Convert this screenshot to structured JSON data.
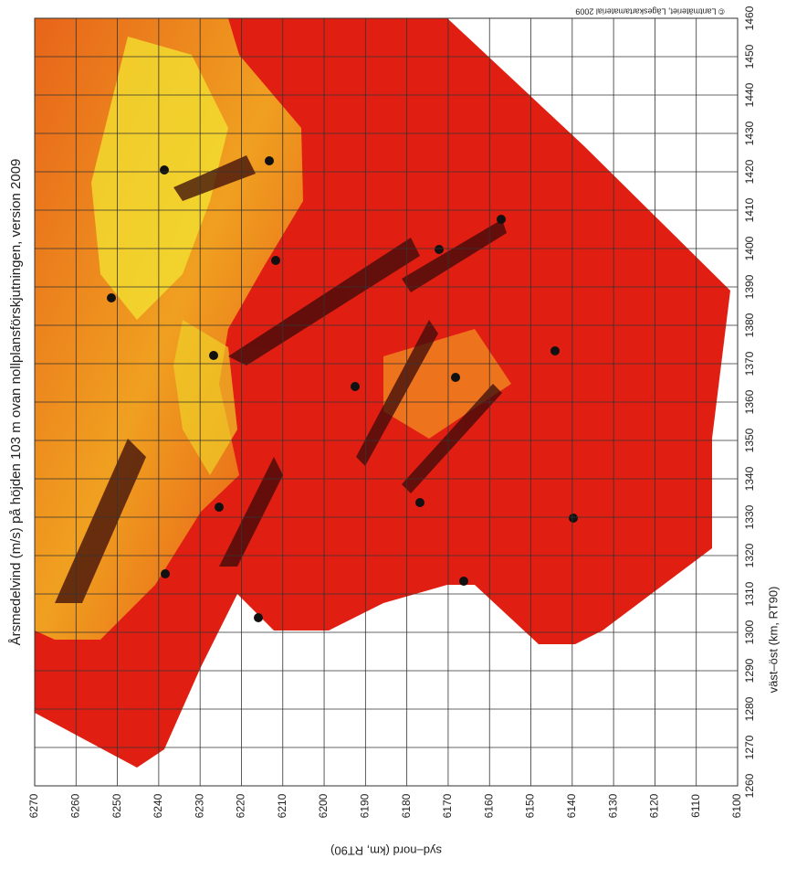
{
  "title": "Årsmedelvind (m/s) på höjden 103 m ovan nollplansförskjutningen, version 2009",
  "credit": "© Lantmäteriet, Lägeskartamaterial 2009",
  "north_axis": {
    "label": "syd–nord (km, RT90)",
    "lim": [
      6270,
      6100
    ],
    "ticks": [
      6270,
      6260,
      6250,
      6240,
      6230,
      6220,
      6210,
      6200,
      6190,
      6180,
      6170,
      6160,
      6150,
      6140,
      6130,
      6120,
      6110,
      6100
    ]
  },
  "east_axis": {
    "label": "väst–öst (km, RT90)",
    "lim": [
      1260,
      1460
    ],
    "ticks": [
      1260,
      1270,
      1280,
      1290,
      1300,
      1310,
      1320,
      1330,
      1340,
      1350,
      1360,
      1370,
      1380,
      1390,
      1400,
      1410,
      1420,
      1430,
      1440,
      1450,
      1460
    ]
  }
}
